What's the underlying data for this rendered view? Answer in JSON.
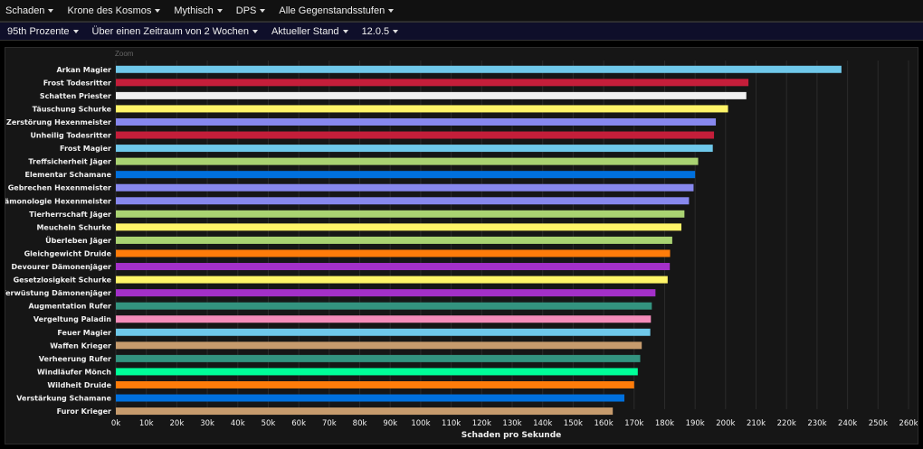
{
  "filters_row1": [
    {
      "label": "Schaden"
    },
    {
      "label": "Krone des Kosmos"
    },
    {
      "label": "Mythisch"
    },
    {
      "label": "DPS"
    },
    {
      "label": "Alle Gegenstandsstufen"
    }
  ],
  "filters_row2": [
    {
      "label": "95th Prozente"
    },
    {
      "label": "Über einen Zeitraum von 2 Wochen"
    },
    {
      "label": "Aktueller Stand"
    },
    {
      "label": "12.0.5"
    }
  ],
  "zoom_label": "Zoom",
  "chart_data": {
    "type": "bar",
    "orientation": "horizontal",
    "xlabel": "Schaden pro Sekunde",
    "xlim": [
      0,
      260000
    ],
    "x_ticks": [
      {
        "value": 0,
        "label": "0k"
      },
      {
        "value": 10000,
        "label": "10k"
      },
      {
        "value": 20000,
        "label": "20k"
      },
      {
        "value": 30000,
        "label": "30k"
      },
      {
        "value": 40000,
        "label": "40k"
      },
      {
        "value": 50000,
        "label": "50k"
      },
      {
        "value": 60000,
        "label": "60k"
      },
      {
        "value": 70000,
        "label": "70k"
      },
      {
        "value": 80000,
        "label": "80k"
      },
      {
        "value": 90000,
        "label": "90k"
      },
      {
        "value": 100000,
        "label": "100k"
      },
      {
        "value": 110000,
        "label": "110k"
      },
      {
        "value": 120000,
        "label": "120k"
      },
      {
        "value": 130000,
        "label": "130k"
      },
      {
        "value": 140000,
        "label": "140k"
      },
      {
        "value": 150000,
        "label": "150k"
      },
      {
        "value": 160000,
        "label": "160k"
      },
      {
        "value": 170000,
        "label": "170k"
      },
      {
        "value": 180000,
        "label": "180k"
      },
      {
        "value": 190000,
        "label": "190k"
      },
      {
        "value": 200000,
        "label": "200k"
      },
      {
        "value": 210000,
        "label": "210k"
      },
      {
        "value": 220000,
        "label": "220k"
      },
      {
        "value": 230000,
        "label": "230k"
      },
      {
        "value": 240000,
        "label": "240k"
      },
      {
        "value": 250000,
        "label": "250k"
      },
      {
        "value": 260000,
        "label": "260k"
      }
    ],
    "grid": true,
    "bars": [
      {
        "label": "Arkan Magier",
        "value": 238000,
        "color": "#6fc8ea"
      },
      {
        "label": "Frost Todesritter",
        "value": 207500,
        "color": "#c41e3a"
      },
      {
        "label": "Schatten Priester",
        "value": 206800,
        "color": "#f0f0f0"
      },
      {
        "label": "Täuschung Schurke",
        "value": 200800,
        "color": "#fff468"
      },
      {
        "label": "Zerstörung Hexenmeister",
        "value": 196800,
        "color": "#8788ee"
      },
      {
        "label": "Unheilig Todesritter",
        "value": 196200,
        "color": "#c41e3a"
      },
      {
        "label": "Frost Magier",
        "value": 195800,
        "color": "#6fc8ea"
      },
      {
        "label": "Treffsicherheit Jäger",
        "value": 191000,
        "color": "#aad372"
      },
      {
        "label": "Elementar Schamane",
        "value": 190000,
        "color": "#0070dd"
      },
      {
        "label": "Gebrechen Hexenmeister",
        "value": 189500,
        "color": "#8788ee"
      },
      {
        "label": "Dämonologie Hexenmeister",
        "value": 188000,
        "color": "#8788ee"
      },
      {
        "label": "Tierherrschaft Jäger",
        "value": 186500,
        "color": "#aad372"
      },
      {
        "label": "Meucheln Schurke",
        "value": 185500,
        "color": "#fff468"
      },
      {
        "label": "Überleben Jäger",
        "value": 182500,
        "color": "#aad372"
      },
      {
        "label": "Gleichgewicht Druide",
        "value": 181800,
        "color": "#ff7c0a"
      },
      {
        "label": "Devourer Dämonenjäger",
        "value": 181700,
        "color": "#a330c9"
      },
      {
        "label": "Gesetzlosigkeit Schurke",
        "value": 181000,
        "color": "#fff468"
      },
      {
        "label": "Verwüstung Dämonenjäger",
        "value": 177000,
        "color": "#a330c9"
      },
      {
        "label": "Augmentation Rufer",
        "value": 175800,
        "color": "#33937f"
      },
      {
        "label": "Vergeltung Paladin",
        "value": 175500,
        "color": "#f48cba"
      },
      {
        "label": "Feuer Magier",
        "value": 175300,
        "color": "#6fc8ea"
      },
      {
        "label": "Waffen Krieger",
        "value": 172500,
        "color": "#c69b6d"
      },
      {
        "label": "Verheerung Rufer",
        "value": 172000,
        "color": "#33937f"
      },
      {
        "label": "Windläufer Mönch",
        "value": 171200,
        "color": "#00ff98"
      },
      {
        "label": "Wildheit Druide",
        "value": 170000,
        "color": "#ff7c0a"
      },
      {
        "label": "Verstärkung Schamane",
        "value": 166800,
        "color": "#0070dd"
      },
      {
        "label": "Furor Krieger",
        "value": 163000,
        "color": "#c69b6d"
      }
    ]
  }
}
